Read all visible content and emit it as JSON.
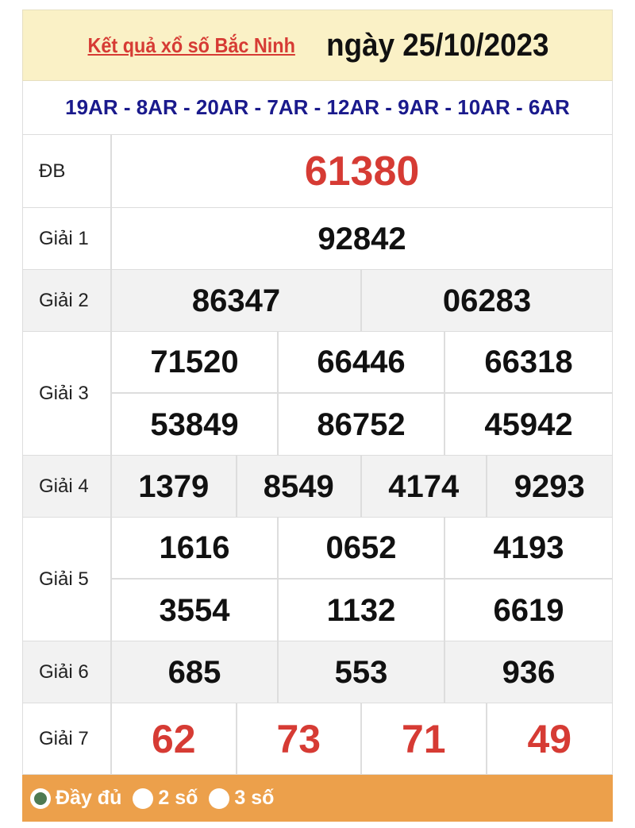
{
  "header": {
    "link": "Kết quả xổ số Bắc Ninh",
    "date": "ngày 25/10/2023"
  },
  "codes": "19AR - 8AR - 20AR - 7AR - 12AR - 9AR - 10AR - 6AR",
  "prizes": {
    "db": {
      "label": "ĐB",
      "numbers": [
        "61380"
      ]
    },
    "g1": {
      "label": "Giải 1",
      "numbers": [
        "92842"
      ]
    },
    "g2": {
      "label": "Giải 2",
      "numbers": [
        "86347",
        "06283"
      ]
    },
    "g3": {
      "label": "Giải 3",
      "numbers": [
        "71520",
        "66446",
        "66318",
        "53849",
        "86752",
        "45942"
      ]
    },
    "g4": {
      "label": "Giải 4",
      "numbers": [
        "1379",
        "8549",
        "4174",
        "9293"
      ]
    },
    "g5": {
      "label": "Giải 5",
      "numbers": [
        "1616",
        "0652",
        "4193",
        "3554",
        "1132",
        "6619"
      ]
    },
    "g6": {
      "label": "Giải 6",
      "numbers": [
        "685",
        "553",
        "936"
      ]
    },
    "g7": {
      "label": "Giải 7",
      "numbers": [
        "62",
        "73",
        "71",
        "49"
      ]
    }
  },
  "options": [
    {
      "label": "Đầy đủ",
      "selected": true
    },
    {
      "label": "2 số",
      "selected": false
    },
    {
      "label": "3 số",
      "selected": false
    }
  ],
  "colors": {
    "accent": "#d63b34",
    "codes": "#1a1a8c",
    "bar": "#eca04b",
    "header_bg": "#faf1c6"
  }
}
